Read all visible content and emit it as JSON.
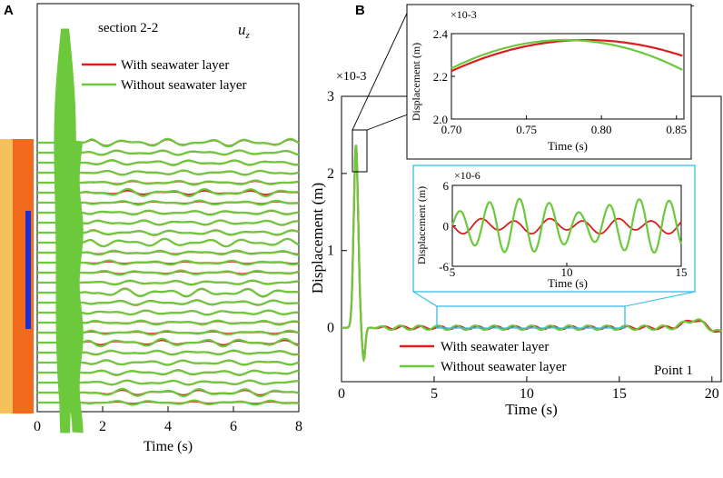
{
  "chart_data": [
    {
      "panel": "A",
      "type": "line",
      "title": "section 2-2",
      "component": "u",
      "component_sub": "z",
      "xlabel": "Time (s)",
      "ylabel": "",
      "xlim": [
        0,
        8
      ],
      "xticks": [
        "0",
        "2",
        "4",
        "6",
        "8"
      ],
      "trace_count": 27,
      "series": [
        {
          "name": "With seawater layer",
          "color": "#d81e1e"
        },
        {
          "name": "Without seawater layer",
          "color": "#6cc93c"
        }
      ],
      "pulse": {
        "center_time": 0.85,
        "peak_rel": 1.0
      },
      "legend": "upper-right"
    },
    {
      "panel": "B",
      "type": "line",
      "xlabel": "Time (s)",
      "ylabel": "Displacement (m)",
      "scale_label": "×10-3",
      "xlim": [
        0,
        20.5
      ],
      "ylim": [
        -0.7,
        3.0
      ],
      "xticks": [
        "0",
        "5",
        "10",
        "15",
        "20"
      ],
      "yticks": [
        "0",
        "1",
        "2",
        "3"
      ],
      "series": [
        {
          "name": "With seawater layer",
          "color": "#d81e1e"
        },
        {
          "name": "Without seawater layer",
          "color": "#6cc93c"
        }
      ],
      "peak": {
        "time": 0.78,
        "value": 2.37
      },
      "trough": {
        "time": 1.2,
        "value": -0.42
      },
      "late_bump": {
        "time": 19.0,
        "value": 0.1
      },
      "annotation": "Point 1",
      "legend": "lower-left",
      "insets": [
        {
          "name": "peak zoom",
          "xlabel": "Time (s)",
          "ylabel": "Displacement (m)",
          "scale_label": "×10-3",
          "xlim": [
            0.7,
            0.855
          ],
          "ylim": [
            2.0,
            2.4
          ],
          "xticks": [
            "0.70",
            "0.75",
            "0.80",
            "0.85"
          ],
          "yticks": [
            "2.0",
            "2.2",
            "2.4"
          ],
          "series": [
            {
              "name": "With seawater layer",
              "color": "#d81e1e",
              "peak_time": 0.79,
              "peak_value": 2.37,
              "curvature": 18
            },
            {
              "name": "Without seawater layer",
              "color": "#6cc93c",
              "peak_time": 0.776,
              "peak_value": 2.37,
              "curvature": 23
            }
          ]
        },
        {
          "name": "tail zoom",
          "xlabel": "Time (s)",
          "ylabel": "Displacement (m)",
          "scale_label": "×10-6",
          "xlim": [
            5,
            15
          ],
          "ylim": [
            -6,
            6
          ],
          "xticks": [
            "5",
            "10",
            "15"
          ],
          "yticks": [
            "6",
            "0",
            "-6"
          ],
          "series": [
            {
              "name": "With seawater layer",
              "color": "#d81e1e",
              "amplitude": 1.1
            },
            {
              "name": "Without seawater layer",
              "color": "#6cc93c",
              "amplitude": 4.0
            }
          ]
        }
      ]
    }
  ],
  "panels": {
    "a_label": "A",
    "b_label": "B"
  },
  "model_colors": {
    "sediment": "#f5c15c",
    "rock": "#f26b1d",
    "water": "#1f2fd0"
  }
}
